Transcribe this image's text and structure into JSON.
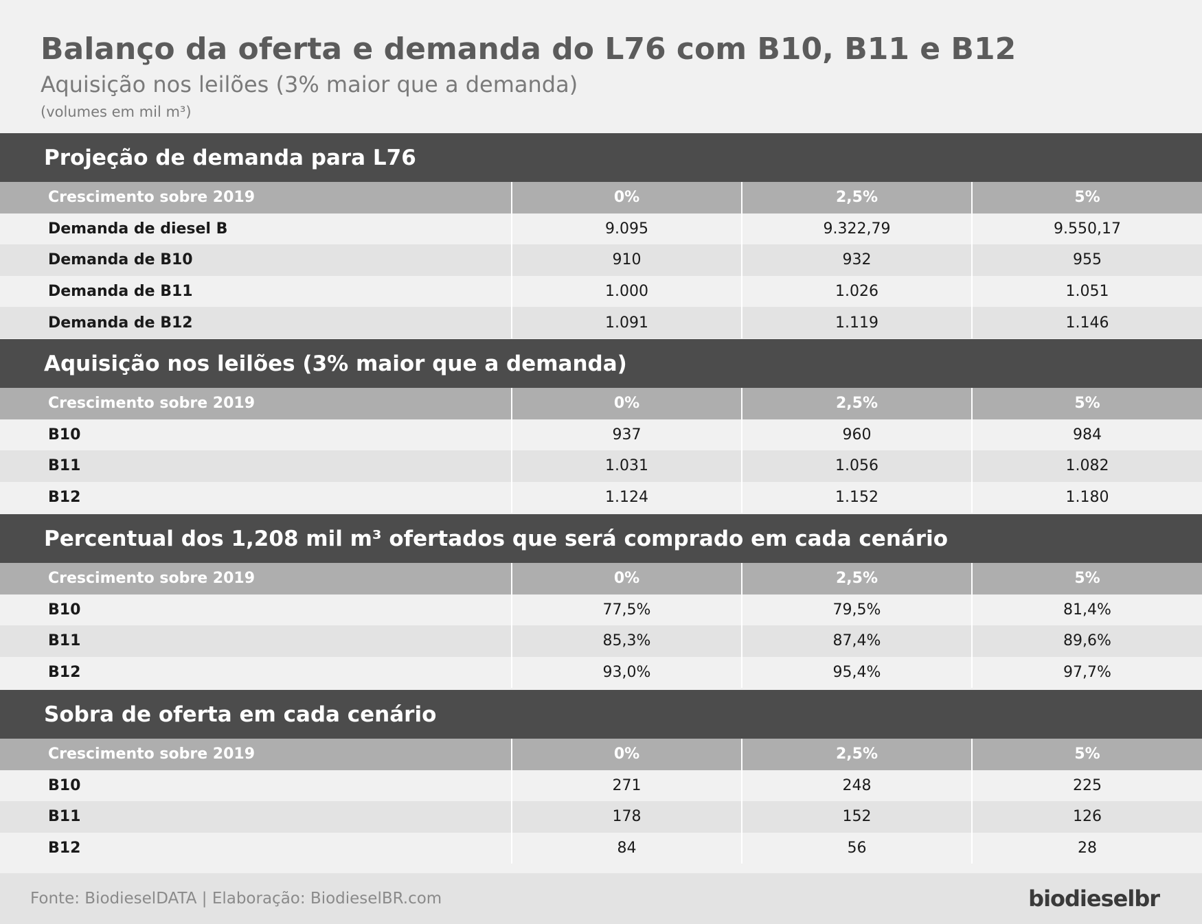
{
  "header": {
    "title": "Balanço da oferta e demanda do L76 com B10, B11 e B12",
    "subtitle": "Aquisição nos leilões (3% maior que a demanda)",
    "note": "(volumes em mil m³)"
  },
  "sections": [
    {
      "title": "Projeção de demanda para L76",
      "header": [
        "Crescimento sobre 2019",
        "0%",
        "2,5%",
        "5%"
      ],
      "rows": [
        [
          "Demanda de diesel B",
          "9.095",
          "9.322,79",
          "9.550,17"
        ],
        [
          "Demanda de B10",
          "910",
          "932",
          "955"
        ],
        [
          "Demanda de B11",
          "1.000",
          "1.026",
          "1.051"
        ],
        [
          "Demanda de B12",
          "1.091",
          "1.119",
          "1.146"
        ]
      ]
    },
    {
      "title": "Aquisição nos leilões (3% maior que a demanda)",
      "header": [
        "Crescimento sobre 2019",
        "0%",
        "2,5%",
        "5%"
      ],
      "rows": [
        [
          "B10",
          "937",
          "960",
          "984"
        ],
        [
          "B11",
          "1.031",
          "1.056",
          "1.082"
        ],
        [
          "B12",
          "1.124",
          "1.152",
          "1.180"
        ]
      ]
    },
    {
      "title": "Percentual dos 1,208 mil m³ ofertados que será comprado em cada cenário",
      "header": [
        "Crescimento sobre 2019",
        "0%",
        "2,5%",
        "5%"
      ],
      "rows": [
        [
          "B10",
          "77,5%",
          "79,5%",
          "81,4%"
        ],
        [
          "B11",
          "85,3%",
          "87,4%",
          "89,6%"
        ],
        [
          "B12",
          "93,0%",
          "95,4%",
          "97,7%"
        ]
      ]
    },
    {
      "title": "Sobra de oferta em cada cenário",
      "header": [
        "Crescimento sobre 2019",
        "0%",
        "2,5%",
        "5%"
      ],
      "rows": [
        [
          "B10",
          "271",
          "248",
          "225"
        ],
        [
          "B11",
          "178",
          "152",
          "126"
        ],
        [
          "B12",
          "84",
          "56",
          "28"
        ]
      ]
    }
  ],
  "footer": {
    "source": "Fonte: BiodieselDATA | Elaboração: BiodieselBR.com",
    "logo": "biodieselbr"
  }
}
